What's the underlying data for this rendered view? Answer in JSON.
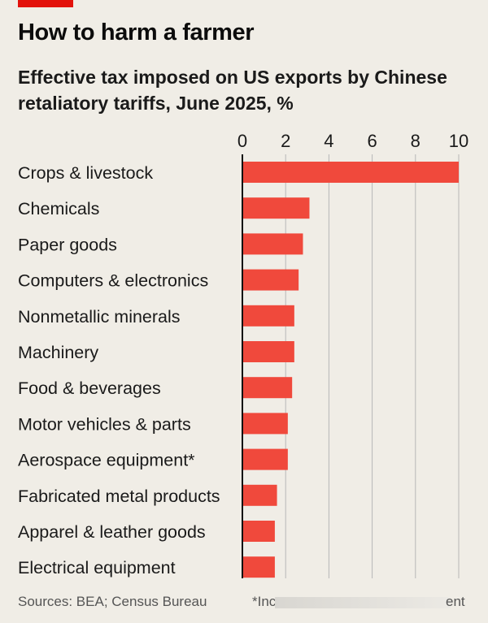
{
  "title": "How to harm a farmer",
  "subtitle": "Effective tax imposed on US exports by Chinese retaliatory tariffs, June 2025, %",
  "source": "Sources: BEA; Census Bureau",
  "footnote_start": "*Inc",
  "footnote_end": "ent",
  "colors": {
    "brand": "#e3120b",
    "bar": "#f0493c",
    "grid": "#b7b7b7",
    "axis": "#111111"
  },
  "chart_data": {
    "type": "bar",
    "orientation": "horizontal",
    "title": "How to harm a farmer",
    "xlabel": "Effective tax imposed on US exports by Chinese retaliatory tariffs, June 2025, %",
    "ylabel": "",
    "xlim": [
      0,
      10
    ],
    "ticks": [
      "0",
      "2",
      "4",
      "6",
      "8",
      "10"
    ],
    "tick_values": [
      0,
      2,
      4,
      6,
      8,
      10
    ],
    "grid": true,
    "axis_position": "top",
    "categories": [
      "Crops & livestock",
      "Chemicals",
      "Paper goods",
      "Computers & electronics",
      "Nonmetallic minerals",
      "Machinery",
      "Food & beverages",
      "Motor vehicles & parts",
      "Aerospace equipment*",
      "Fabricated metal products",
      "Apparel & leather goods",
      "Electrical equipment"
    ],
    "values": [
      10.0,
      3.1,
      2.8,
      2.6,
      2.4,
      2.4,
      2.3,
      2.1,
      2.1,
      1.6,
      1.5,
      1.5
    ]
  }
}
